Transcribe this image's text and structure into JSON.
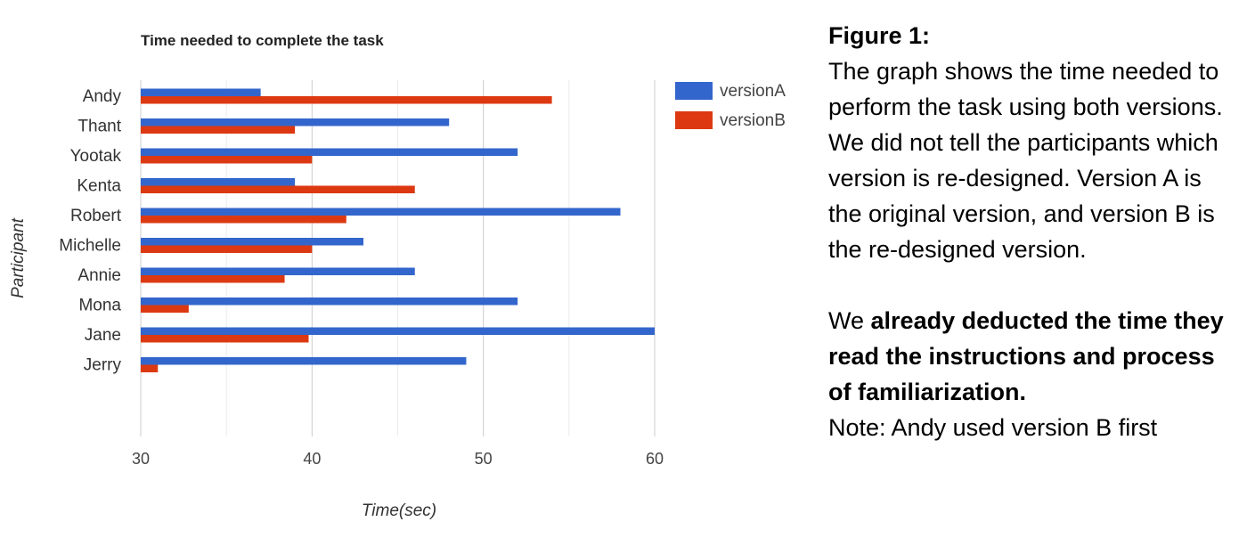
{
  "chart_data": {
    "type": "bar",
    "orientation": "horizontal",
    "title": "Time needed to complete the task",
    "xlabel": "Time(sec)",
    "ylabel": "Participant",
    "categories": [
      "Andy",
      "Thant",
      "Yootak",
      "Kenta",
      "Robert",
      "Michelle",
      "Annie",
      "Mona",
      "Jane",
      "Jerry"
    ],
    "series": [
      {
        "name": "versionA",
        "color": "#3366cc",
        "values": [
          37,
          48,
          52,
          39,
          58,
          43,
          46,
          52,
          60,
          49
        ]
      },
      {
        "name": "versionB",
        "color": "#dc3912",
        "values": [
          54,
          39,
          40,
          46,
          42,
          40,
          38.4,
          32.8,
          39.8,
          31
        ]
      }
    ],
    "xlim": [
      30,
      60
    ],
    "xticks": [
      "30",
      "40",
      "50",
      "60"
    ],
    "grid": true,
    "legend_position": "top-right"
  },
  "caption": {
    "heading": "Figure 1:",
    "paragraph": "The graph shows the time needed to perform the task using both versions. We did not tell the participants which version is re-designed. Version A is the original version, and version B is the re-designed version.",
    "emphasis_prefix": "We",
    "emphasis_bold": "already deducted the time they read the instructions and process of familiarization.",
    "note": "Note: Andy used version B first"
  }
}
